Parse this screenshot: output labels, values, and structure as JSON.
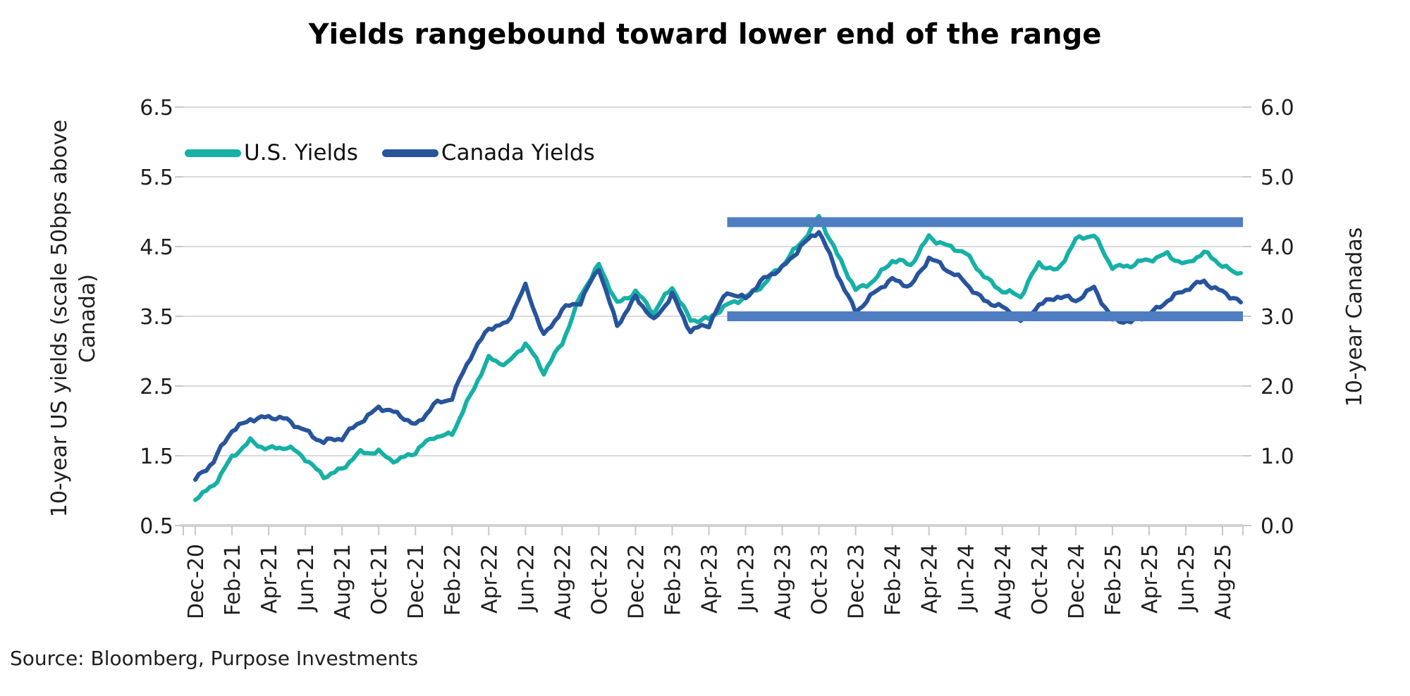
{
  "title": "Yields rangebound toward lower end of the range",
  "source": "Source: Bloomberg, Purpose Investments",
  "legend": [
    {
      "label": "U.S. Yields",
      "color": "#16B0A6"
    },
    {
      "label": "Canada Yields",
      "color": "#27549B"
    }
  ],
  "left_axis": {
    "title_line1": "10-year US yields (scale 50bps above",
    "title_line2": "Canada)",
    "ticks": [
      "6.5",
      "5.5",
      "4.5",
      "3.5",
      "2.5",
      "1.5",
      "0.5"
    ],
    "range": [
      0.5,
      6.5
    ]
  },
  "right_axis": {
    "title": "10-year Canadas",
    "ticks": [
      "6.0",
      "5.0",
      "4.0",
      "3.0",
      "2.0",
      "1.0",
      "0.0"
    ],
    "range": [
      0.0,
      6.0
    ]
  },
  "colors": {
    "us_line": "#16B0A6",
    "canada_line": "#27549B",
    "range_band": "#4E7DC2",
    "gridline": "#DADADA",
    "axis_line": "#D2D2D2",
    "tick_mark": "#C8C8C8",
    "text": "#1f1f1f"
  },
  "chart_data": {
    "type": "line",
    "x": [
      "Dec-20",
      "Jan-21",
      "Feb-21",
      "Mar-21",
      "Apr-21",
      "May-21",
      "Jun-21",
      "Jul-21",
      "Aug-21",
      "Sep-21",
      "Oct-21",
      "Nov-21",
      "Dec-21",
      "Jan-22",
      "Feb-22",
      "Mar-22",
      "Apr-22",
      "May-22",
      "Jun-22",
      "Jul-22",
      "Aug-22",
      "Sep-22",
      "Oct-22",
      "Nov-22",
      "Dec-22",
      "Jan-23",
      "Feb-23",
      "Mar-23",
      "Apr-23",
      "May-23",
      "Jun-23",
      "Jul-23",
      "Aug-23",
      "Sep-23",
      "Oct-23",
      "Nov-23",
      "Dec-23",
      "Jan-24",
      "Feb-24",
      "Mar-24",
      "Apr-24",
      "May-24",
      "Jun-24",
      "Jul-24",
      "Aug-24",
      "Sep-24",
      "Oct-24",
      "Nov-24",
      "Dec-24",
      "Jan-25",
      "Feb-25",
      "Mar-25",
      "Apr-25",
      "May-25",
      "Jun-25",
      "Jul-25",
      "Aug-25",
      "Sep-25"
    ],
    "x_tick_every": 2,
    "series": [
      {
        "name": "U.S. Yields",
        "axis": "left",
        "color": "#16B0A6",
        "values": [
          0.92,
          1.09,
          1.44,
          1.72,
          1.63,
          1.6,
          1.45,
          1.24,
          1.3,
          1.52,
          1.58,
          1.43,
          1.52,
          1.79,
          1.84,
          2.33,
          2.89,
          2.85,
          3.1,
          2.67,
          3.15,
          3.8,
          4.2,
          3.7,
          3.88,
          3.52,
          3.92,
          3.48,
          3.44,
          3.64,
          3.81,
          3.96,
          4.2,
          4.57,
          4.95,
          4.35,
          3.88,
          4.05,
          4.28,
          4.22,
          4.68,
          4.5,
          4.37,
          4.1,
          3.88,
          3.75,
          4.27,
          4.18,
          4.57,
          4.65,
          4.24,
          4.22,
          4.28,
          4.42,
          4.25,
          4.38,
          4.24,
          4.12
        ]
      },
      {
        "name": "Canada Yields",
        "axis": "right",
        "color": "#27549B",
        "values": [
          0.68,
          0.89,
          1.36,
          1.56,
          1.54,
          1.49,
          1.39,
          1.2,
          1.22,
          1.51,
          1.72,
          1.57,
          1.43,
          1.77,
          1.81,
          2.4,
          2.87,
          2.9,
          3.4,
          2.74,
          3.12,
          3.17,
          3.7,
          2.9,
          3.25,
          2.92,
          3.35,
          2.78,
          2.85,
          3.38,
          3.27,
          3.5,
          3.7,
          4.03,
          4.2,
          3.6,
          3.1,
          3.32,
          3.5,
          3.46,
          3.85,
          3.63,
          3.5,
          3.25,
          3.1,
          2.92,
          3.2,
          3.27,
          3.2,
          3.45,
          2.95,
          2.88,
          3.05,
          3.25,
          3.35,
          3.5,
          3.38,
          3.2
        ]
      }
    ],
    "range_band": {
      "color": "#4E7DC2",
      "start_x": "May-23",
      "upper_left_scale": 4.85,
      "lower_left_scale": 3.5
    },
    "title": "Yields rangebound toward lower end of the range",
    "ylabel_left": "10-year US yields (scale 50bps above Canada)",
    "ylabel_right": "10-year Canadas",
    "ylim_left": [
      0.5,
      6.5
    ],
    "ylim_right": [
      0.0,
      6.0
    ],
    "grid": true,
    "legend_position": "top-left-inside"
  }
}
